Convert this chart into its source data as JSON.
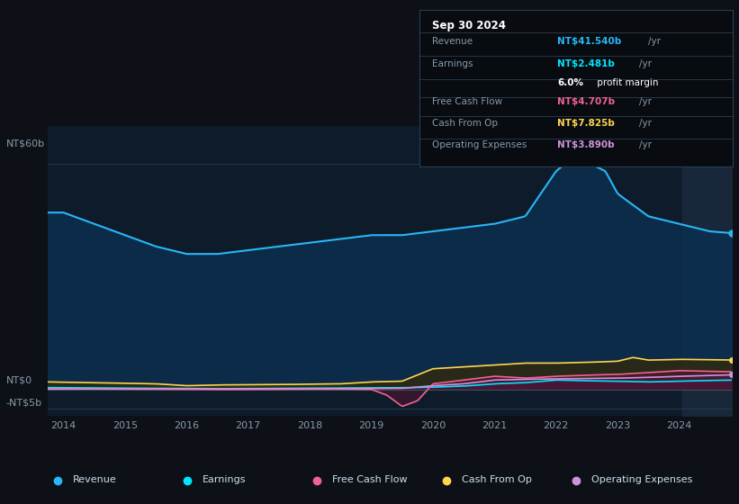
{
  "background_color": "#0d1117",
  "chart_bg_color": "#0d1b2a",
  "ylim_min": -7,
  "ylim_max": 70,
  "revenue_color": "#29b6f6",
  "earnings_color": "#00e5ff",
  "free_cash_flow_color": "#f06292",
  "cash_from_op_color": "#ffd54f",
  "operating_expenses_color": "#ce93d8",
  "info_box": {
    "date": "Sep 30 2024",
    "revenue_val": "NT$41.540b",
    "earnings_val": "NT$2.481b",
    "profit_margin": "6.0%",
    "fcf_val": "NT$4.707b",
    "cash_from_op_val": "NT$7.825b",
    "op_expenses_val": "NT$3.890b"
  },
  "legend_items": [
    "Revenue",
    "Earnings",
    "Free Cash Flow",
    "Cash From Op",
    "Operating Expenses"
  ]
}
